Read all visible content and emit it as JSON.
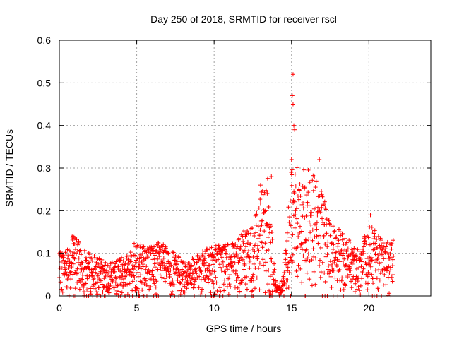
{
  "chart_data": {
    "type": "scatter",
    "title": "Day 250 of 2018, SRMTID for receiver rscl",
    "xlabel": "GPS time / hours",
    "ylabel": "SRMTID / TECUs",
    "xlim": [
      0,
      24
    ],
    "ylim": [
      0,
      0.6
    ],
    "xticks": [
      0,
      5,
      10,
      15,
      20
    ],
    "xtick_labels": [
      "0",
      "5",
      "10",
      "15",
      "20"
    ],
    "yticks": [
      0,
      0.1,
      0.2,
      0.3,
      0.4,
      0.5,
      0.6
    ],
    "ytick_labels": [
      "0",
      "0.1",
      "0.2",
      "0.3",
      "0.4",
      "0.5",
      "0.6"
    ],
    "grid": true,
    "marker": "+",
    "color": "#ff0000",
    "series": [
      {
        "name": "SRMTID",
        "envelope": {
          "description": "dense points sampled continuously from 0 to 21.6 h; values listed as [hour, typical_max]",
          "hours": [
            0,
            0.5,
            1.0,
            1.5,
            2.0,
            2.5,
            3.0,
            3.5,
            4.0,
            4.5,
            5.0,
            5.5,
            6.0,
            6.5,
            7.0,
            7.5,
            8.0,
            8.5,
            9.0,
            9.5,
            10.0,
            10.5,
            11.0,
            11.5,
            12.0,
            12.5,
            13.0,
            13.5,
            14.0,
            14.5,
            15.0,
            15.5,
            16.0,
            16.5,
            17.0,
            17.5,
            18.0,
            18.5,
            19.0,
            19.5,
            20.0,
            20.5,
            21.0,
            21.5
          ],
          "max_values": [
            0.1,
            0.12,
            0.15,
            0.11,
            0.1,
            0.09,
            0.08,
            0.08,
            0.09,
            0.1,
            0.14,
            0.12,
            0.12,
            0.13,
            0.11,
            0.1,
            0.08,
            0.09,
            0.1,
            0.11,
            0.12,
            0.13,
            0.12,
            0.13,
            0.16,
            0.17,
            0.26,
            0.28,
            0.02,
            0.05,
            0.33,
            0.32,
            0.31,
            0.28,
            0.24,
            0.18,
            0.16,
            0.14,
            0.12,
            0.11,
            0.18,
            0.15,
            0.12,
            0.14
          ]
        },
        "notable_points": [
          {
            "x": 15.1,
            "y": 0.52
          },
          {
            "x": 15.05,
            "y": 0.47
          },
          {
            "x": 15.1,
            "y": 0.45
          },
          {
            "x": 15.15,
            "y": 0.4
          },
          {
            "x": 15.2,
            "y": 0.39
          },
          {
            "x": 15.0,
            "y": 0.32
          },
          {
            "x": 16.8,
            "y": 0.32
          },
          {
            "x": 13.0,
            "y": 0.26
          },
          {
            "x": 13.7,
            "y": 0.28
          },
          {
            "x": 20.1,
            "y": 0.19
          }
        ]
      }
    ]
  }
}
